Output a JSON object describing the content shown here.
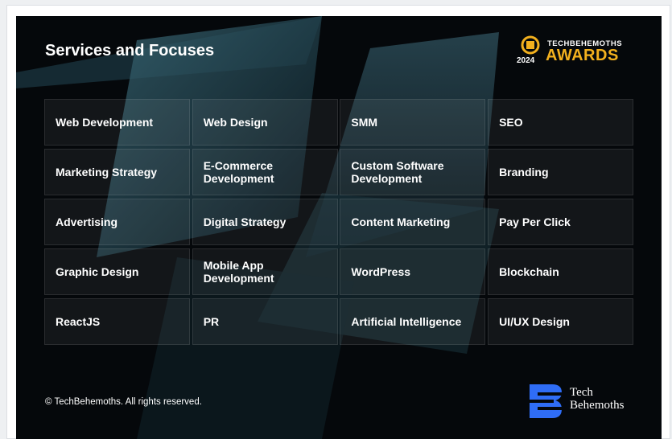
{
  "header": {
    "title": "Services and Focuses"
  },
  "awards": {
    "brand": "TECHBEHEMOTHS",
    "year": "2024",
    "label": "AWARDS"
  },
  "grid": {
    "cells": [
      "Web Development",
      "Web Design",
      "SMM",
      "SEO",
      "Marketing Strategy",
      "E-Commerce Development",
      "Custom Software Development",
      "Branding",
      "Advertising",
      "Digital Strategy",
      "Content Marketing",
      "Pay Per Click",
      "Graphic Design",
      "Mobile App Development",
      "WordPress",
      "Blockchain",
      "ReactJS",
      "PR",
      "Artificial Intelligence",
      "UI/UX Design"
    ]
  },
  "footer": {
    "copyright": "© TechBehemoths. All rights reserved.",
    "logo": [
      "Tech",
      "Behemoths"
    ]
  }
}
